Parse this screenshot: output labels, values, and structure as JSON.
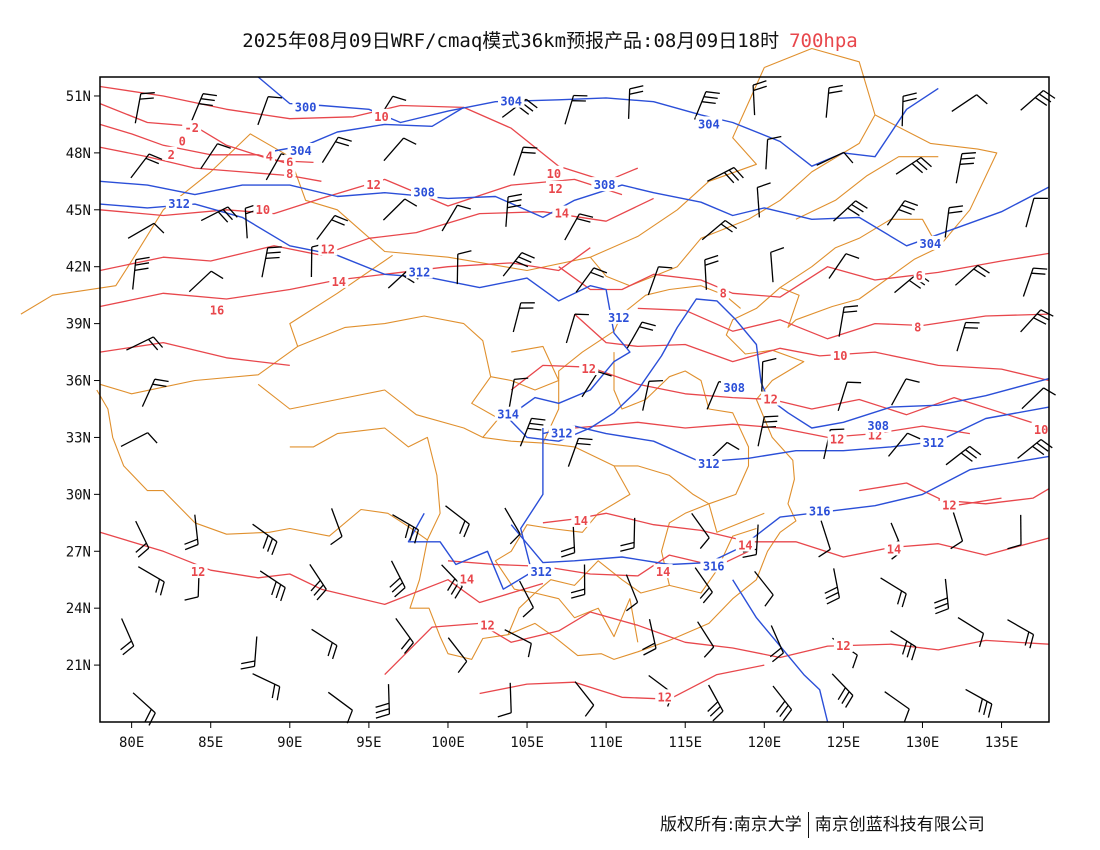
{
  "title": {
    "text": "2025年08月09日WRF/cmaq模式36km预报产品:08月09日18时",
    "level": "700hpa",
    "level_color": "#e8474c"
  },
  "footer": {
    "left": "版权所有:南京大学",
    "right": "南京创蓝科技有限公司"
  },
  "colors": {
    "height_contour": "#2b4fd8",
    "temperature_contour": "#e8474c",
    "border": "#e0902e",
    "wind_barb": "#000000",
    "frame": "#000000"
  },
  "map": {
    "lon_range": [
      78,
      138
    ],
    "lat_range": [
      18,
      52
    ],
    "lon_ticks": [
      "80E",
      "85E",
      "90E",
      "95E",
      "100E",
      "105E",
      "110E",
      "115E",
      "120E",
      "125E",
      "130E",
      "135E"
    ],
    "lon_values": [
      80,
      85,
      90,
      95,
      100,
      105,
      110,
      115,
      120,
      125,
      130,
      135
    ],
    "lat_ticks": [
      "21N",
      "24N",
      "27N",
      "30N",
      "33N",
      "36N",
      "39N",
      "42N",
      "45N",
      "48N",
      "51N"
    ],
    "lat_values": [
      21,
      24,
      27,
      30,
      33,
      36,
      39,
      42,
      45,
      48,
      51
    ],
    "height_labels": [
      {
        "text": "300",
        "lon": 91.0,
        "lat": 50.4
      },
      {
        "text": "304",
        "lon": 104.0,
        "lat": 50.7
      },
      {
        "text": "304",
        "lon": 116.5,
        "lat": 49.5
      },
      {
        "text": "304",
        "lon": 90.7,
        "lat": 48.1
      },
      {
        "text": "308",
        "lon": 109.9,
        "lat": 46.3
      },
      {
        "text": "308",
        "lon": 98.5,
        "lat": 45.9
      },
      {
        "text": "312",
        "lon": 83.0,
        "lat": 45.3
      },
      {
        "text": "304",
        "lon": 130.5,
        "lat": 43.2
      },
      {
        "text": "312",
        "lon": 98.2,
        "lat": 41.7
      },
      {
        "text": "312",
        "lon": 110.8,
        "lat": 39.3
      },
      {
        "text": "308",
        "lon": 118.1,
        "lat": 35.6
      },
      {
        "text": "308",
        "lon": 127.2,
        "lat": 33.6
      },
      {
        "text": "314",
        "lon": 103.8,
        "lat": 34.2
      },
      {
        "text": "312",
        "lon": 107.2,
        "lat": 33.2
      },
      {
        "text": "312",
        "lon": 116.5,
        "lat": 31.6
      },
      {
        "text": "312",
        "lon": 130.7,
        "lat": 32.7
      },
      {
        "text": "316",
        "lon": 123.5,
        "lat": 29.1
      },
      {
        "text": "316",
        "lon": 116.8,
        "lat": 26.2
      },
      {
        "text": "312",
        "lon": 105.9,
        "lat": 25.9
      }
    ],
    "temp_labels": [
      {
        "text": "-2",
        "lon": 83.8,
        "lat": 49.3
      },
      {
        "text": "0",
        "lon": 83.2,
        "lat": 48.6
      },
      {
        "text": "2",
        "lon": 82.5,
        "lat": 47.9
      },
      {
        "text": "4",
        "lon": 88.7,
        "lat": 47.8
      },
      {
        "text": "6",
        "lon": 90.0,
        "lat": 47.5
      },
      {
        "text": "8",
        "lon": 90.0,
        "lat": 46.9
      },
      {
        "text": "10",
        "lon": 95.8,
        "lat": 49.9
      },
      {
        "text": "10",
        "lon": 106.7,
        "lat": 46.9
      },
      {
        "text": "12",
        "lon": 95.3,
        "lat": 46.3
      },
      {
        "text": "12",
        "lon": 106.8,
        "lat": 46.1
      },
      {
        "text": "10",
        "lon": 88.3,
        "lat": 45.0
      },
      {
        "text": "14",
        "lon": 107.2,
        "lat": 44.8
      },
      {
        "text": "12",
        "lon": 92.4,
        "lat": 42.9
      },
      {
        "text": "14",
        "lon": 93.1,
        "lat": 41.2
      },
      {
        "text": "16",
        "lon": 85.4,
        "lat": 39.7
      },
      {
        "text": "8",
        "lon": 117.4,
        "lat": 40.6
      },
      {
        "text": "6",
        "lon": 129.8,
        "lat": 41.5
      },
      {
        "text": "8",
        "lon": 129.7,
        "lat": 38.8
      },
      {
        "text": "10",
        "lon": 124.8,
        "lat": 37.3
      },
      {
        "text": "12",
        "lon": 108.9,
        "lat": 36.6
      },
      {
        "text": "12",
        "lon": 120.4,
        "lat": 35.0
      },
      {
        "text": "12",
        "lon": 124.6,
        "lat": 32.9
      },
      {
        "text": "12",
        "lon": 127.0,
        "lat": 33.1
      },
      {
        "text": "10",
        "lon": 137.5,
        "lat": 33.4
      },
      {
        "text": "14",
        "lon": 108.4,
        "lat": 28.6
      },
      {
        "text": "14",
        "lon": 118.8,
        "lat": 27.3
      },
      {
        "text": "14",
        "lon": 113.6,
        "lat": 25.9
      },
      {
        "text": "14",
        "lon": 128.2,
        "lat": 27.1
      },
      {
        "text": "12",
        "lon": 131.7,
        "lat": 29.4
      },
      {
        "text": "12",
        "lon": 84.2,
        "lat": 25.9
      },
      {
        "text": "14",
        "lon": 101.2,
        "lat": 25.5
      },
      {
        "text": "12",
        "lon": 102.5,
        "lat": 23.1
      },
      {
        "text": "12",
        "lon": 125.0,
        "lat": 22.0
      },
      {
        "text": "12",
        "lon": 113.7,
        "lat": 19.3
      }
    ]
  }
}
